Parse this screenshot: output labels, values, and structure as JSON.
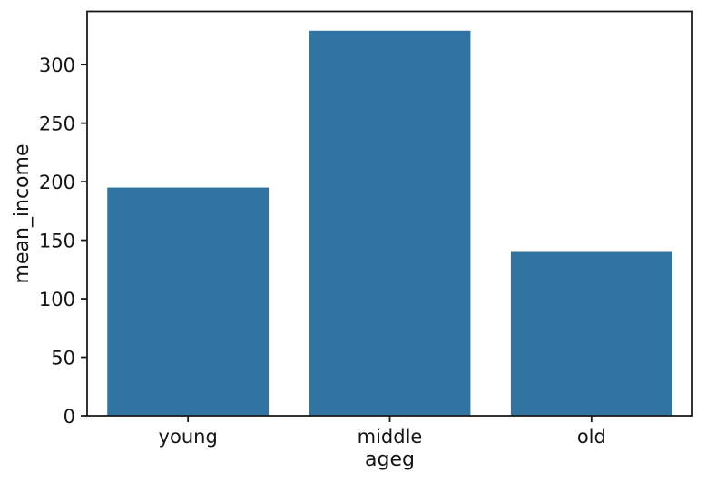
{
  "figure": {
    "background": "#ffffff"
  },
  "colors": {
    "bar": "#3274a1",
    "axis": "#1c1c1c",
    "text": "#151515"
  },
  "chart_data": {
    "type": "bar",
    "title": "",
    "categories": [
      "young",
      "middle",
      "old"
    ],
    "values": [
      195,
      329,
      140
    ],
    "xlabel": "ageg",
    "ylabel": "mean_income",
    "ylim": [
      0,
      345.5
    ],
    "yticks": [
      0,
      50,
      100,
      150,
      200,
      250,
      300
    ],
    "grid": false,
    "legend": null,
    "bar_width_fraction": 0.8
  }
}
